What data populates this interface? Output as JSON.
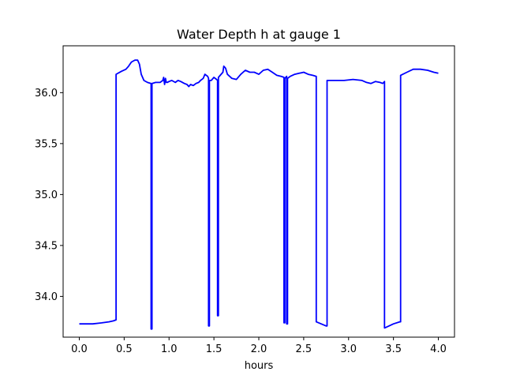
{
  "chart_data": {
    "type": "line",
    "title": "Water Depth h at gauge 1",
    "xlabel": "hours",
    "ylabel": "",
    "xlim": [
      -0.18,
      4.18
    ],
    "ylim": [
      33.6,
      36.46
    ],
    "xticks": [
      0.0,
      0.5,
      1.0,
      1.5,
      2.0,
      2.5,
      3.0,
      3.5,
      4.0
    ],
    "xtick_labels": [
      "0.0",
      "0.5",
      "1.0",
      "1.5",
      "2.0",
      "2.5",
      "3.0",
      "3.5",
      "4.0"
    ],
    "yticks": [
      34.0,
      34.5,
      35.0,
      35.5,
      36.0
    ],
    "ytick_labels": [
      "34.0",
      "34.5",
      "35.0",
      "35.5",
      "36.0"
    ],
    "grid": false,
    "series": [
      {
        "color": "#0000ff",
        "x": [
          0.0,
          0.15,
          0.25,
          0.33,
          0.38,
          0.41,
          0.41,
          0.47,
          0.52,
          0.55,
          0.58,
          0.62,
          0.65,
          0.67,
          0.69,
          0.72,
          0.76,
          0.8,
          0.8,
          0.81,
          0.81,
          0.85,
          0.9,
          0.93,
          0.94,
          0.95,
          0.96,
          0.97,
          0.98,
          1.0,
          1.03,
          1.07,
          1.1,
          1.13,
          1.17,
          1.2,
          1.22,
          1.24,
          1.27,
          1.3,
          1.33,
          1.35,
          1.38,
          1.4,
          1.43,
          1.44,
          1.44,
          1.45,
          1.45,
          1.47,
          1.5,
          1.53,
          1.54,
          1.54,
          1.55,
          1.55,
          1.6,
          1.61,
          1.62,
          1.63,
          1.65,
          1.7,
          1.75,
          1.8,
          1.85,
          1.9,
          1.95,
          2.0,
          2.05,
          2.1,
          2.15,
          2.2,
          2.25,
          2.28,
          2.28,
          2.29,
          2.29,
          2.3,
          2.31,
          2.31,
          2.32,
          2.32,
          2.35,
          2.4,
          2.45,
          2.5,
          2.55,
          2.6,
          2.64,
          2.64,
          2.75,
          2.76,
          2.76,
          2.85,
          2.95,
          3.05,
          3.15,
          3.2,
          3.25,
          3.3,
          3.35,
          3.38,
          3.4,
          3.4,
          3.45,
          3.5,
          3.57,
          3.58,
          3.58,
          3.65,
          3.72,
          3.8,
          3.88,
          3.95,
          4.0
        ],
        "y": [
          33.73,
          33.73,
          33.74,
          33.75,
          33.76,
          33.77,
          36.18,
          36.21,
          36.23,
          36.26,
          36.3,
          36.32,
          36.32,
          36.28,
          36.18,
          36.12,
          36.1,
          36.09,
          33.68,
          33.68,
          36.09,
          36.1,
          36.1,
          36.12,
          36.15,
          36.08,
          36.14,
          36.1,
          36.1,
          36.11,
          36.12,
          36.1,
          36.12,
          36.11,
          36.09,
          36.08,
          36.06,
          36.08,
          36.07,
          36.09,
          36.1,
          36.12,
          36.14,
          36.18,
          36.16,
          36.14,
          33.71,
          33.71,
          36.12,
          36.12,
          36.15,
          36.13,
          36.12,
          33.81,
          33.81,
          36.15,
          36.2,
          36.26,
          36.25,
          36.24,
          36.18,
          36.14,
          36.13,
          36.18,
          36.22,
          36.2,
          36.2,
          36.18,
          36.22,
          36.23,
          36.2,
          36.17,
          36.16,
          36.15,
          33.74,
          33.74,
          36.14,
          36.15,
          36.16,
          33.73,
          33.73,
          36.14,
          36.16,
          36.18,
          36.19,
          36.2,
          36.18,
          36.17,
          36.16,
          33.75,
          33.71,
          33.71,
          36.12,
          36.12,
          36.12,
          36.13,
          36.12,
          36.1,
          36.09,
          36.11,
          36.1,
          36.09,
          36.11,
          33.69,
          33.71,
          33.73,
          33.75,
          33.75,
          36.17,
          36.2,
          36.23,
          36.23,
          36.22,
          36.2,
          36.19
        ]
      }
    ]
  }
}
